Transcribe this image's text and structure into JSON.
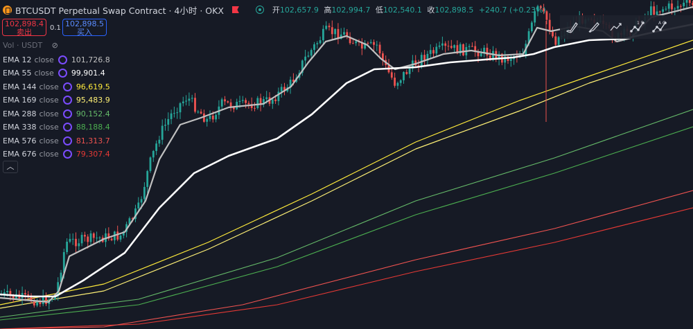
{
  "header": {
    "title": "BTCUSDT Perpetual Swap Contract · 4小时 · OKX",
    "ohlc": [
      {
        "label": "开",
        "value": "102,657.9"
      },
      {
        "label": "高",
        "value": "102,994.7"
      },
      {
        "label": "低",
        "value": "102,540.1"
      },
      {
        "label": "收",
        "value": "102,898.5"
      }
    ],
    "change": "+240.7 (+0.23%)"
  },
  "trade": {
    "sell_price": "102,898.4",
    "sell_label": "卖出",
    "spread": "0.1",
    "buy_price": "102,898.5",
    "buy_label": "买入"
  },
  "volume_label": "Vol · USDT",
  "indicators": [
    {
      "name": "EMA 12",
      "source": "close",
      "value": "101,726.8",
      "color": "#c0c0c0"
    },
    {
      "name": "EMA 55",
      "source": "close",
      "value": "99,901.4",
      "color": "#ffffff"
    },
    {
      "name": "EMA 144",
      "source": "close",
      "value": "96,619.5",
      "color": "#ffeb3b"
    },
    {
      "name": "EMA 169",
      "source": "close",
      "value": "95,483.9",
      "color": "#fff176"
    },
    {
      "name": "EMA 288",
      "source": "close",
      "value": "90,152.4",
      "color": "#66bb6a"
    },
    {
      "name": "EMA 338",
      "source": "close",
      "value": "88,188.4",
      "color": "#4caf50"
    },
    {
      "name": "EMA 576",
      "source": "close",
      "value": "81,313.7",
      "color": "#ef5350"
    },
    {
      "name": "EMA 676",
      "source": "close",
      "value": "79,307.4",
      "color": "#e53935"
    }
  ],
  "colors": {
    "up": "#26a69a",
    "down": "#ef5350",
    "background": "#161a25",
    "accent": "#2962ff"
  },
  "toolbar": {
    "icons": [
      "brush-icon",
      "highlighter-icon",
      "trend-line-icon",
      "wave-pattern-icon",
      "abcd-pattern-icon"
    ],
    "wave_labels": "1 5",
    "abcd_labels": "A C"
  }
}
